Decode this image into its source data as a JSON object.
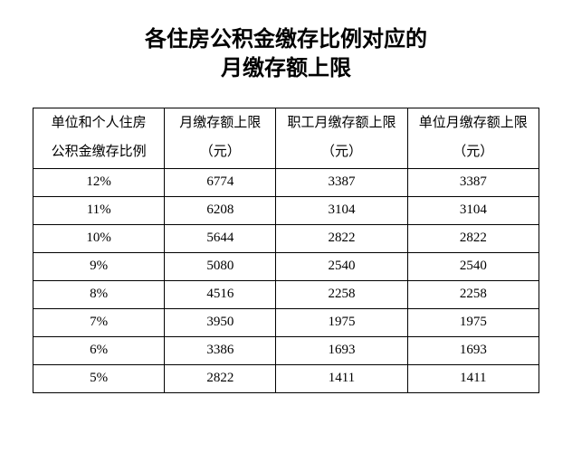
{
  "title_line1": "各住房公积金缴存比例对应的",
  "title_line2": "月缴存额上限",
  "table": {
    "columns": [
      {
        "line1": "单位和个人住房",
        "line2": "公积金缴存比例"
      },
      {
        "line1": "月缴存额上限",
        "line2": "（元）"
      },
      {
        "line1": "职工月缴存额上限",
        "line2": "（元）"
      },
      {
        "line1": "单位月缴存额上限",
        "line2": "（元）"
      }
    ],
    "rows": [
      [
        "12%",
        "6774",
        "3387",
        "3387"
      ],
      [
        "11%",
        "6208",
        "3104",
        "3104"
      ],
      [
        "10%",
        "5644",
        "2822",
        "2822"
      ],
      [
        "9%",
        "5080",
        "2540",
        "2540"
      ],
      [
        "8%",
        "4516",
        "2258",
        "2258"
      ],
      [
        "7%",
        "3950",
        "1975",
        "1975"
      ],
      [
        "6%",
        "3386",
        "1693",
        "1693"
      ],
      [
        "5%",
        "2822",
        "1411",
        "1411"
      ]
    ],
    "border_color": "#000000",
    "background_color": "#ffffff",
    "header_fontsize": 15,
    "cell_fontsize": 15,
    "title_fontsize": 24
  }
}
